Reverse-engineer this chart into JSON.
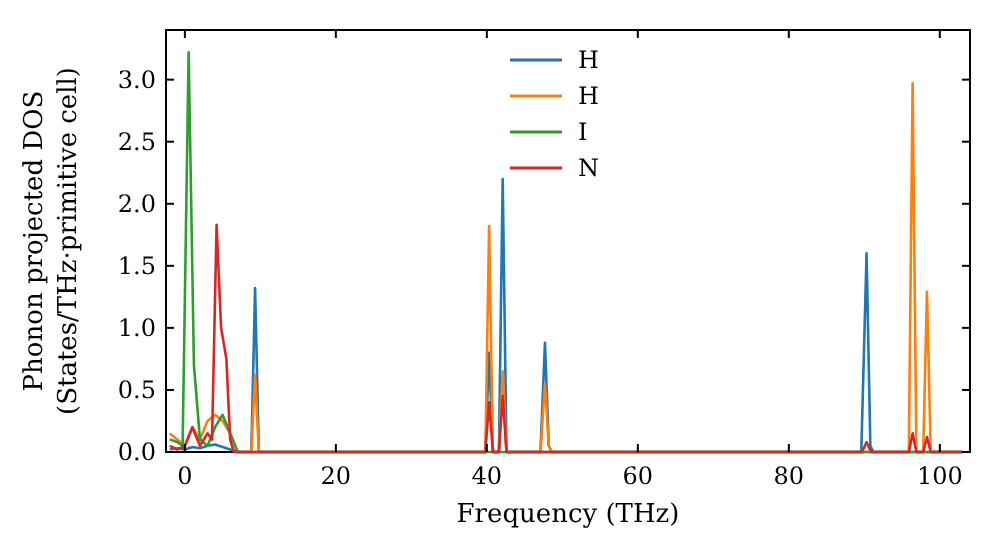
{
  "chart_data": {
    "type": "line",
    "xlabel": "Frequency (THz)",
    "ylabel": "Phonon projected DOS\n(States/THz·primitive cell)",
    "xlim": [
      -2.5,
      104
    ],
    "xticks": [
      0,
      20,
      40,
      60,
      80,
      100
    ],
    "ylim": [
      0,
      3.4
    ],
    "yticks": [
      {
        "value": 0,
        "label": "0.0"
      },
      0.5,
      {
        "value": 1,
        "label": "1.0"
      },
      1.5,
      {
        "value": 2,
        "label": "2.0"
      },
      2.5,
      {
        "value": 3,
        "label": "3.0"
      }
    ],
    "legend": "top",
    "grid": false,
    "marker": "none",
    "line_style": "solid",
    "series": [
      {
        "name": "H",
        "color": "#1f77b4",
        "x": [
          -2,
          -1,
          0,
          1,
          2,
          3,
          4,
          5,
          6,
          7,
          8.8,
          9.3,
          9.8,
          10,
          39.8,
          40.3,
          40.8,
          41.6,
          42.1,
          42.6,
          43,
          47.1,
          47.7,
          48.2,
          48.6,
          89.6,
          90.3,
          90.8,
          91.2,
          103
        ],
        "values": [
          0.02,
          0.03,
          0.02,
          0.04,
          0.03,
          0.05,
          0.06,
          0.04,
          0.02,
          0,
          0,
          1.32,
          0,
          0,
          0,
          0.8,
          0,
          0,
          2.2,
          0,
          0,
          0,
          0.88,
          0.05,
          0,
          0,
          1.6,
          0.05,
          0,
          0
        ]
      },
      {
        "name": "H",
        "color": "#ff7f0e",
        "x": [
          -2,
          -1,
          0,
          1,
          2,
          3,
          4,
          5,
          6,
          7,
          8.8,
          9.3,
          9.8,
          10,
          39.8,
          40.3,
          40.8,
          41.6,
          42.1,
          42.6,
          43,
          47.1,
          47.7,
          48.2,
          48.6,
          95.9,
          96.4,
          96.9,
          97.8,
          98.3,
          98.8,
          103
        ],
        "values": [
          0.15,
          0.1,
          0.05,
          0.2,
          0.1,
          0.25,
          0.3,
          0.25,
          0.15,
          0,
          0,
          0.62,
          0,
          0,
          0,
          1.82,
          0,
          0,
          0.65,
          0,
          0,
          0,
          0.55,
          0.05,
          0,
          0,
          2.97,
          0,
          0,
          1.29,
          0,
          0
        ]
      },
      {
        "name": "I",
        "color": "#2ca02c",
        "x": [
          -2,
          -1,
          -0.3,
          0.5,
          1.2,
          2,
          3,
          4,
          5,
          6,
          7,
          103
        ],
        "values": [
          0.1,
          0.08,
          0.05,
          3.22,
          0.7,
          0.1,
          0.05,
          0.2,
          0.3,
          0.15,
          0,
          0
        ]
      },
      {
        "name": "N",
        "color": "#d62728",
        "x": [
          -2,
          -1,
          0,
          1,
          2,
          3,
          3.6,
          4.2,
          4.8,
          5.5,
          6,
          6.5,
          7,
          39.8,
          40.3,
          40.8,
          41.6,
          42.1,
          42.6,
          89.7,
          90.3,
          90.9,
          95.9,
          96.4,
          96.9,
          97.8,
          98.3,
          98.8,
          103
        ],
        "values": [
          0.05,
          0.02,
          0.05,
          0.2,
          0.05,
          0.15,
          0.1,
          1.83,
          1.0,
          0.75,
          0.1,
          0,
          0,
          0,
          0.4,
          0,
          0,
          0.45,
          0,
          0,
          0.08,
          0,
          0,
          0.15,
          0,
          0,
          0.12,
          0,
          0
        ]
      }
    ]
  }
}
